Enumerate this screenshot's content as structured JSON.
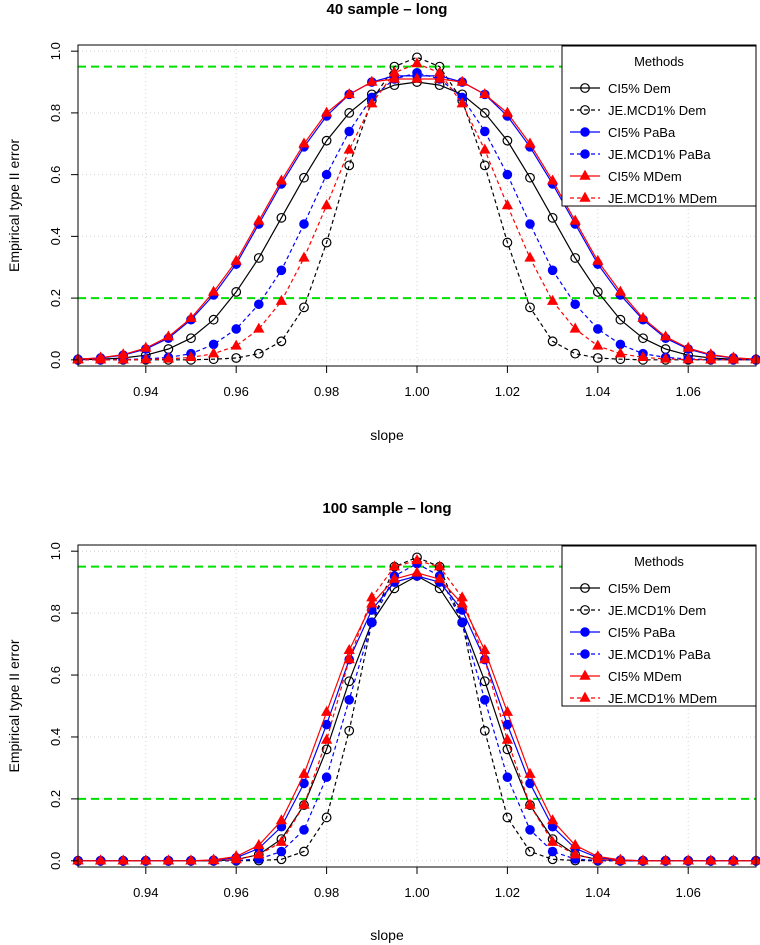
{
  "chart_data": [
    {
      "type": "line",
      "title": "40 sample – long",
      "xlabel": "slope",
      "ylabel": "Empirical type II error",
      "xlim": [
        0.925,
        1.075
      ],
      "ylim": [
        -0.02,
        1.02
      ],
      "x_ticks": [
        0.94,
        0.96,
        0.98,
        1.0,
        1.02,
        1.04,
        1.06
      ],
      "x_tick_labels": [
        "0.94",
        "0.96",
        "0.98",
        "1.00",
        "1.02",
        "1.04",
        "1.06"
      ],
      "y_ticks": [
        0.0,
        0.2,
        0.4,
        0.6,
        0.8,
        1.0
      ],
      "y_tick_labels": [
        "0.0",
        "0.2",
        "0.4",
        "0.6",
        "0.8",
        "1.0"
      ],
      "grid": true,
      "reference_lines": [
        0.95,
        0.2
      ],
      "legend": {
        "title": "Methods",
        "position": "top-right",
        "entries": [
          "CI5% Dem",
          "JE.MCD1% Dem",
          "CI5% PaBa",
          "JE.MCD1% PaBa",
          "CI5% MDem",
          "JE.MCD1% MDem"
        ]
      },
      "series": [
        {
          "name": "CI5% Dem",
          "color": "#000000",
          "line": "solid",
          "marker": "circle-open",
          "x": [
            0.925,
            0.93,
            0.935,
            0.94,
            0.945,
            0.95,
            0.955,
            0.96,
            0.965,
            0.97,
            0.975,
            0.98,
            0.985,
            0.99,
            0.995,
            1.0,
            1.005,
            1.01,
            1.015,
            1.02,
            1.025,
            1.03,
            1.035,
            1.04,
            1.045,
            1.05,
            1.055,
            1.06,
            1.065,
            1.07,
            1.075
          ],
          "y": [
            0.0,
            0.002,
            0.006,
            0.015,
            0.035,
            0.07,
            0.13,
            0.22,
            0.33,
            0.46,
            0.59,
            0.71,
            0.8,
            0.86,
            0.89,
            0.9,
            0.89,
            0.86,
            0.8,
            0.71,
            0.59,
            0.46,
            0.33,
            0.22,
            0.13,
            0.07,
            0.035,
            0.015,
            0.006,
            0.002,
            0.0
          ]
        },
        {
          "name": "JE.MCD1% Dem",
          "color": "#000000",
          "line": "dashed",
          "marker": "circle-open",
          "x": [
            0.925,
            0.93,
            0.935,
            0.94,
            0.945,
            0.95,
            0.955,
            0.96,
            0.965,
            0.97,
            0.975,
            0.98,
            0.985,
            0.99,
            0.995,
            1.0,
            1.005,
            1.01,
            1.015,
            1.02,
            1.025,
            1.03,
            1.035,
            1.04,
            1.045,
            1.05,
            1.055,
            1.06,
            1.065,
            1.07,
            1.075
          ],
          "y": [
            0.0,
            0.0,
            0.0,
            0.0,
            0.0,
            0.0,
            0.002,
            0.006,
            0.02,
            0.06,
            0.17,
            0.38,
            0.63,
            0.84,
            0.95,
            0.98,
            0.95,
            0.84,
            0.63,
            0.38,
            0.17,
            0.06,
            0.02,
            0.006,
            0.002,
            0.0,
            0.0,
            0.0,
            0.0,
            0.0,
            0.0
          ]
        },
        {
          "name": "CI5% PaBa",
          "color": "#0000ff",
          "line": "solid",
          "marker": "dot",
          "x": [
            0.925,
            0.93,
            0.935,
            0.94,
            0.945,
            0.95,
            0.955,
            0.96,
            0.965,
            0.97,
            0.975,
            0.98,
            0.985,
            0.99,
            0.995,
            1.0,
            1.005,
            1.01,
            1.015,
            1.02,
            1.025,
            1.03,
            1.035,
            1.04,
            1.045,
            1.05,
            1.055,
            1.06,
            1.065,
            1.07,
            1.075
          ],
          "y": [
            0.002,
            0.006,
            0.015,
            0.035,
            0.07,
            0.13,
            0.21,
            0.31,
            0.44,
            0.57,
            0.69,
            0.79,
            0.86,
            0.9,
            0.92,
            0.92,
            0.92,
            0.9,
            0.86,
            0.79,
            0.69,
            0.57,
            0.44,
            0.31,
            0.21,
            0.13,
            0.07,
            0.035,
            0.015,
            0.006,
            0.002
          ]
        },
        {
          "name": "JE.MCD1% PaBa",
          "color": "#0000ff",
          "line": "dashed",
          "marker": "dot",
          "x": [
            0.925,
            0.93,
            0.935,
            0.94,
            0.945,
            0.95,
            0.955,
            0.96,
            0.965,
            0.97,
            0.975,
            0.98,
            0.985,
            0.99,
            0.995,
            1.0,
            1.005,
            1.01,
            1.015,
            1.02,
            1.025,
            1.03,
            1.035,
            1.04,
            1.045,
            1.05,
            1.055,
            1.06,
            1.065,
            1.07,
            1.075
          ],
          "y": [
            0.0,
            0.0,
            0.001,
            0.003,
            0.008,
            0.02,
            0.05,
            0.1,
            0.18,
            0.29,
            0.44,
            0.6,
            0.74,
            0.85,
            0.91,
            0.93,
            0.91,
            0.85,
            0.74,
            0.6,
            0.44,
            0.29,
            0.18,
            0.1,
            0.05,
            0.02,
            0.008,
            0.003,
            0.001,
            0.0,
            0.0
          ]
        },
        {
          "name": "CI5% MDem",
          "color": "#ff0000",
          "line": "solid",
          "marker": "triangle",
          "x": [
            0.925,
            0.93,
            0.935,
            0.94,
            0.945,
            0.95,
            0.955,
            0.96,
            0.965,
            0.97,
            0.975,
            0.98,
            0.985,
            0.99,
            0.995,
            1.0,
            1.005,
            1.01,
            1.015,
            1.02,
            1.025,
            1.03,
            1.035,
            1.04,
            1.045,
            1.05,
            1.055,
            1.06,
            1.065,
            1.07,
            1.075
          ],
          "y": [
            0.002,
            0.007,
            0.017,
            0.038,
            0.075,
            0.135,
            0.22,
            0.32,
            0.45,
            0.58,
            0.7,
            0.8,
            0.86,
            0.9,
            0.91,
            0.91,
            0.91,
            0.9,
            0.86,
            0.8,
            0.7,
            0.58,
            0.45,
            0.32,
            0.22,
            0.135,
            0.075,
            0.038,
            0.017,
            0.007,
            0.002
          ]
        },
        {
          "name": "JE.MCD1% MDem",
          "color": "#ff0000",
          "line": "dashed",
          "marker": "triangle",
          "x": [
            0.925,
            0.93,
            0.935,
            0.94,
            0.945,
            0.95,
            0.955,
            0.96,
            0.965,
            0.97,
            0.975,
            0.98,
            0.985,
            0.99,
            0.995,
            1.0,
            1.005,
            1.01,
            1.015,
            1.02,
            1.025,
            1.03,
            1.035,
            1.04,
            1.045,
            1.05,
            1.055,
            1.06,
            1.065,
            1.07,
            1.075
          ],
          "y": [
            0.0,
            0.0,
            0.0,
            0.001,
            0.003,
            0.008,
            0.02,
            0.045,
            0.1,
            0.19,
            0.33,
            0.5,
            0.68,
            0.83,
            0.93,
            0.96,
            0.93,
            0.83,
            0.68,
            0.5,
            0.33,
            0.19,
            0.1,
            0.045,
            0.02,
            0.008,
            0.003,
            0.001,
            0.0,
            0.0,
            0.0
          ]
        }
      ]
    },
    {
      "type": "line",
      "title": "100 sample – long",
      "xlabel": "slope",
      "ylabel": "Empirical type II error",
      "xlim": [
        0.925,
        1.075
      ],
      "ylim": [
        -0.02,
        1.02
      ],
      "x_ticks": [
        0.94,
        0.96,
        0.98,
        1.0,
        1.02,
        1.04,
        1.06
      ],
      "x_tick_labels": [
        "0.94",
        "0.96",
        "0.98",
        "1.00",
        "1.02",
        "1.04",
        "1.06"
      ],
      "y_ticks": [
        0.0,
        0.2,
        0.4,
        0.6,
        0.8,
        1.0
      ],
      "y_tick_labels": [
        "0.0",
        "0.2",
        "0.4",
        "0.6",
        "0.8",
        "1.0"
      ],
      "grid": true,
      "reference_lines": [
        0.95,
        0.2
      ],
      "legend": {
        "title": "Methods",
        "position": "top-right",
        "entries": [
          "CI5% Dem",
          "JE.MCD1% Dem",
          "CI5% PaBa",
          "JE.MCD1% PaBa",
          "CI5% MDem",
          "JE.MCD1% MDem"
        ]
      },
      "series": [
        {
          "name": "CI5% Dem",
          "color": "#000000",
          "line": "solid",
          "marker": "circle-open",
          "x": [
            0.925,
            0.93,
            0.935,
            0.94,
            0.945,
            0.95,
            0.955,
            0.96,
            0.965,
            0.97,
            0.975,
            0.98,
            0.985,
            0.99,
            0.995,
            1.0,
            1.005,
            1.01,
            1.015,
            1.02,
            1.025,
            1.03,
            1.035,
            1.04,
            1.045,
            1.05,
            1.055,
            1.06,
            1.065,
            1.07,
            1.075
          ],
          "y": [
            0.0,
            0.0,
            0.0,
            0.0,
            0.0,
            0.0,
            0.0,
            0.004,
            0.02,
            0.07,
            0.18,
            0.36,
            0.58,
            0.77,
            0.88,
            0.92,
            0.88,
            0.77,
            0.58,
            0.36,
            0.18,
            0.07,
            0.02,
            0.004,
            0.0,
            0.0,
            0.0,
            0.0,
            0.0,
            0.0,
            0.0
          ]
        },
        {
          "name": "JE.MCD1% Dem",
          "color": "#000000",
          "line": "dashed",
          "marker": "circle-open",
          "x": [
            0.925,
            0.93,
            0.935,
            0.94,
            0.945,
            0.95,
            0.955,
            0.96,
            0.965,
            0.97,
            0.975,
            0.98,
            0.985,
            0.99,
            0.995,
            1.0,
            1.005,
            1.01,
            1.015,
            1.02,
            1.025,
            1.03,
            1.035,
            1.04,
            1.045,
            1.05,
            1.055,
            1.06,
            1.065,
            1.07,
            1.075
          ],
          "y": [
            0.0,
            0.0,
            0.0,
            0.0,
            0.0,
            0.0,
            0.0,
            0.0,
            0.001,
            0.005,
            0.03,
            0.14,
            0.42,
            0.77,
            0.95,
            0.98,
            0.95,
            0.77,
            0.42,
            0.14,
            0.03,
            0.005,
            0.001,
            0.0,
            0.0,
            0.0,
            0.0,
            0.0,
            0.0,
            0.0,
            0.0
          ]
        },
        {
          "name": "CI5% PaBa",
          "color": "#0000ff",
          "line": "solid",
          "marker": "dot",
          "x": [
            0.925,
            0.93,
            0.935,
            0.94,
            0.945,
            0.95,
            0.955,
            0.96,
            0.965,
            0.97,
            0.975,
            0.98,
            0.985,
            0.99,
            0.995,
            1.0,
            1.005,
            1.01,
            1.015,
            1.02,
            1.025,
            1.03,
            1.035,
            1.04,
            1.045,
            1.05,
            1.055,
            1.06,
            1.065,
            1.07,
            1.075
          ],
          "y": [
            0.0,
            0.0,
            0.0,
            0.0,
            0.0,
            0.0,
            0.002,
            0.01,
            0.04,
            0.11,
            0.25,
            0.44,
            0.65,
            0.81,
            0.9,
            0.92,
            0.9,
            0.81,
            0.65,
            0.44,
            0.25,
            0.11,
            0.04,
            0.01,
            0.002,
            0.0,
            0.0,
            0.0,
            0.0,
            0.0,
            0.0
          ]
        },
        {
          "name": "JE.MCD1% PaBa",
          "color": "#0000ff",
          "line": "dashed",
          "marker": "dot",
          "x": [
            0.925,
            0.93,
            0.935,
            0.94,
            0.945,
            0.95,
            0.955,
            0.96,
            0.965,
            0.97,
            0.975,
            0.98,
            0.985,
            0.99,
            0.995,
            1.0,
            1.005,
            1.01,
            1.015,
            1.02,
            1.025,
            1.03,
            1.035,
            1.04,
            1.045,
            1.05,
            1.055,
            1.06,
            1.065,
            1.07,
            1.075
          ],
          "y": [
            0.0,
            0.0,
            0.0,
            0.0,
            0.0,
            0.0,
            0.0,
            0.001,
            0.006,
            0.03,
            0.1,
            0.27,
            0.52,
            0.77,
            0.92,
            0.96,
            0.92,
            0.77,
            0.52,
            0.27,
            0.1,
            0.03,
            0.006,
            0.001,
            0.0,
            0.0,
            0.0,
            0.0,
            0.0,
            0.0,
            0.0
          ]
        },
        {
          "name": "CI5% MDem",
          "color": "#ff0000",
          "line": "solid",
          "marker": "triangle",
          "x": [
            0.925,
            0.93,
            0.935,
            0.94,
            0.945,
            0.95,
            0.955,
            0.96,
            0.965,
            0.97,
            0.975,
            0.98,
            0.985,
            0.99,
            0.995,
            1.0,
            1.005,
            1.01,
            1.015,
            1.02,
            1.025,
            1.03,
            1.035,
            1.04,
            1.045,
            1.05,
            1.055,
            1.06,
            1.065,
            1.07,
            1.075
          ],
          "y": [
            0.0,
            0.0,
            0.0,
            0.0,
            0.0,
            0.0,
            0.003,
            0.014,
            0.05,
            0.13,
            0.28,
            0.48,
            0.68,
            0.83,
            0.91,
            0.93,
            0.91,
            0.83,
            0.68,
            0.48,
            0.28,
            0.13,
            0.05,
            0.014,
            0.003,
            0.0,
            0.0,
            0.0,
            0.0,
            0.0,
            0.0
          ]
        },
        {
          "name": "JE.MCD1% MDem",
          "color": "#ff0000",
          "line": "dashed",
          "marker": "triangle",
          "x": [
            0.925,
            0.93,
            0.935,
            0.94,
            0.945,
            0.95,
            0.955,
            0.96,
            0.965,
            0.97,
            0.975,
            0.98,
            0.985,
            0.99,
            0.995,
            1.0,
            1.005,
            1.01,
            1.015,
            1.02,
            1.025,
            1.03,
            1.035,
            1.04,
            1.045,
            1.05,
            1.055,
            1.06,
            1.065,
            1.07,
            1.075
          ],
          "y": [
            0.0,
            0.0,
            0.0,
            0.0,
            0.0,
            0.0,
            0.001,
            0.004,
            0.02,
            0.06,
            0.18,
            0.39,
            0.65,
            0.85,
            0.95,
            0.97,
            0.95,
            0.85,
            0.65,
            0.39,
            0.18,
            0.06,
            0.02,
            0.004,
            0.001,
            0.0,
            0.0,
            0.0,
            0.0,
            0.0,
            0.0
          ]
        }
      ]
    }
  ]
}
